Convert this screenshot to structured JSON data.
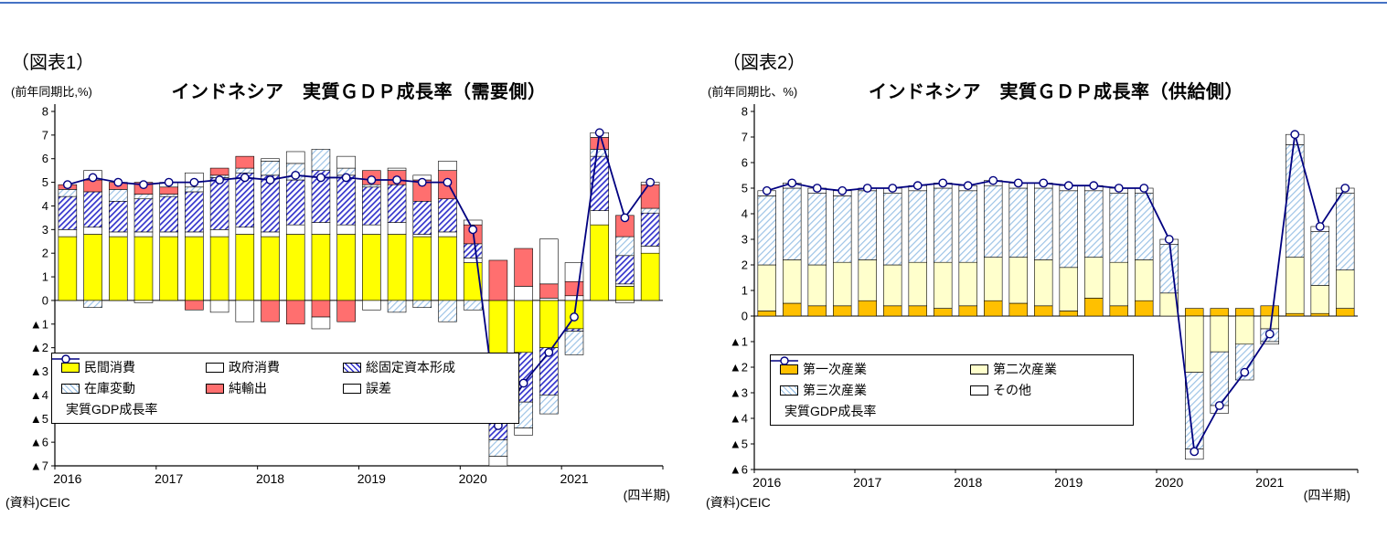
{
  "page": {
    "top_rule_color": "#4472C4"
  },
  "figure1": {
    "fig_label": "（図表1）",
    "axis_unit": "(前年同期比,%)",
    "title": "インドネシア　実質ＧＤＰ成長率（需要側）",
    "source": "(資料)CEIC",
    "xaxis_note": "(四半期)"
  },
  "figure2": {
    "fig_label": "（図表2）",
    "axis_unit": "(前年同期比、%)",
    "title": "インドネシア　実質ＧＤＰ成長率（供給側）",
    "source": "(資料)CEIC",
    "xaxis_note": "(四半期)"
  },
  "chart_data": [
    {
      "type": "bar",
      "subtype": "stacked-bar-with-line",
      "title": "インドネシア 実質GDP成長率（需要側）",
      "x_years": [
        "2016",
        "2017",
        "2018",
        "2019",
        "2020",
        "2021"
      ],
      "quarters_per_year": 4,
      "ylim": [
        -7,
        8
      ],
      "ytick_step": 1,
      "negative_tick_prefix": "▲",
      "grid": false,
      "legend_position": "inside-bottom-left",
      "series": [
        {
          "name": "民間消費",
          "style": "solid",
          "color": "#FFFF00",
          "values": [
            2.7,
            2.8,
            2.7,
            2.7,
            2.7,
            2.7,
            2.7,
            2.8,
            2.7,
            2.8,
            2.8,
            2.8,
            2.8,
            2.8,
            2.7,
            2.7,
            1.6,
            -2.9,
            -2.2,
            -2.0,
            -1.2,
            3.2,
            0.6,
            2.0
          ]
        },
        {
          "name": "政府消費",
          "style": "solid",
          "color": "#FFFFFF",
          "values": [
            0.3,
            0.3,
            0.2,
            0.2,
            0.2,
            0.2,
            0.3,
            0.3,
            0.2,
            0.4,
            0.5,
            0.4,
            0.4,
            0.5,
            0.1,
            0.2,
            0.2,
            -0.4,
            0.6,
            0.1,
            0.2,
            0.6,
            0.1,
            0.3
          ]
        },
        {
          "name": "総固定資本形成",
          "style": "hatch",
          "color": "#3333CC",
          "values": [
            1.4,
            1.5,
            1.3,
            1.4,
            1.5,
            1.7,
            2.2,
            2.3,
            2.4,
            1.9,
            2.2,
            2.1,
            1.6,
            1.6,
            1.4,
            1.4,
            0.6,
            -2.6,
            -2.1,
            -2.0,
            -0.1,
            2.3,
            1.2,
            1.4
          ]
        },
        {
          "name": "在庫変動",
          "style": "hatch-light",
          "color": "#9DC3E6",
          "values": [
            0.3,
            -0.3,
            0.5,
            0.2,
            0.1,
            0.2,
            0.1,
            0.2,
            0.6,
            0.7,
            0.9,
            0.3,
            0.1,
            -0.5,
            -0.3,
            -0.9,
            -0.4,
            -0.7,
            -1.1,
            -0.8,
            -1.0,
            0.3,
            0.8,
            0.2
          ]
        },
        {
          "name": "純輸出",
          "style": "solid",
          "color": "#FF6F6F",
          "values": [
            0.2,
            0.5,
            0.3,
            0.5,
            0.3,
            -0.4,
            0.3,
            0.5,
            -0.9,
            -1.0,
            -0.7,
            -0.9,
            0.6,
            0.6,
            0.9,
            1.2,
            0.8,
            1.7,
            1.6,
            0.6,
            0.6,
            0.5,
            0.9,
            1.0
          ]
        },
        {
          "name": "誤差",
          "style": "solid",
          "color": "#FFFFFF",
          "values": [
            0.0,
            0.4,
            0.0,
            -0.1,
            0.2,
            0.6,
            -0.5,
            -0.9,
            0.1,
            0.5,
            -0.5,
            0.5,
            -0.4,
            0.1,
            0.2,
            0.4,
            0.2,
            -0.4,
            -0.3,
            1.9,
            0.8,
            0.2,
            -0.1,
            0.1
          ]
        }
      ],
      "line": {
        "name": "実質GDP成長率",
        "color": "#000080",
        "values": [
          4.9,
          5.2,
          5.0,
          4.9,
          5.0,
          5.0,
          5.1,
          5.2,
          5.1,
          5.3,
          5.2,
          5.2,
          5.1,
          5.1,
          5.0,
          5.0,
          3.0,
          -5.3,
          -3.5,
          -2.2,
          -0.7,
          7.1,
          3.5,
          5.0
        ]
      }
    },
    {
      "type": "bar",
      "subtype": "stacked-bar-with-line",
      "title": "インドネシア 実質GDP成長率（供給側）",
      "x_years": [
        "2016",
        "2017",
        "2018",
        "2019",
        "2020",
        "2021"
      ],
      "quarters_per_year": 4,
      "ylim": [
        -6,
        8
      ],
      "ytick_step": 1,
      "negative_tick_prefix": "▲",
      "grid": false,
      "legend_position": "inside-bottom-left",
      "series": [
        {
          "name": "第一次産業",
          "style": "solid",
          "color": "#FFC000",
          "values": [
            0.2,
            0.5,
            0.4,
            0.4,
            0.6,
            0.4,
            0.4,
            0.3,
            0.4,
            0.6,
            0.5,
            0.4,
            0.2,
            0.7,
            0.4,
            0.6,
            0.0,
            0.3,
            0.3,
            0.3,
            0.4,
            0.1,
            0.1,
            0.3
          ]
        },
        {
          "name": "第二次産業",
          "style": "solid",
          "color": "#FFFFCC",
          "values": [
            1.8,
            1.7,
            1.6,
            1.7,
            1.6,
            1.6,
            1.7,
            1.8,
            1.7,
            1.7,
            1.8,
            1.8,
            1.7,
            1.6,
            1.7,
            1.6,
            0.9,
            -2.2,
            -1.4,
            -1.1,
            -0.5,
            2.2,
            1.1,
            1.5
          ]
        },
        {
          "name": "第三次産業",
          "style": "hatch-light",
          "color": "#9DC3E6",
          "values": [
            2.7,
            2.8,
            2.8,
            2.6,
            2.7,
            2.8,
            2.8,
            2.9,
            2.8,
            2.8,
            2.7,
            2.8,
            3.0,
            2.6,
            2.7,
            2.6,
            1.9,
            -3.0,
            -2.1,
            -1.4,
            -0.5,
            4.4,
            2.1,
            3.0
          ]
        },
        {
          "name": "その他",
          "style": "solid",
          "color": "#FFFFFF",
          "values": [
            0.2,
            0.2,
            0.2,
            0.2,
            0.1,
            0.2,
            0.2,
            0.2,
            0.2,
            0.2,
            0.2,
            0.2,
            0.2,
            0.2,
            0.2,
            0.2,
            0.2,
            -0.4,
            -0.3,
            0.0,
            -0.1,
            0.4,
            0.2,
            0.2
          ]
        },
        {
          "name": "実質GDP成長率",
          "style": "line-legend-only",
          "color": "#000080",
          "values": []
        }
      ],
      "line": {
        "name": "実質GDP成長率",
        "color": "#000080",
        "values": [
          4.9,
          5.2,
          5.0,
          4.9,
          5.0,
          5.0,
          5.1,
          5.2,
          5.1,
          5.3,
          5.2,
          5.2,
          5.1,
          5.1,
          5.0,
          5.0,
          3.0,
          -5.3,
          -3.5,
          -2.2,
          -0.7,
          7.1,
          3.5,
          5.0
        ]
      }
    }
  ]
}
